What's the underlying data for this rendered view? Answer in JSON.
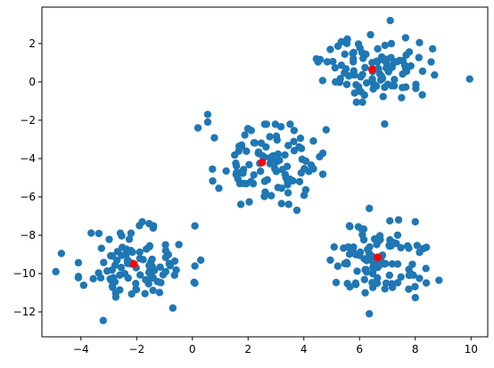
{
  "chart_data": {
    "type": "scatter",
    "title": "",
    "xlabel": "",
    "ylabel": "",
    "xlim": [
      -5.4,
      10.6
    ],
    "ylim": [
      -13.3,
      3.9
    ],
    "xticks": [
      -4,
      -2,
      0,
      2,
      4,
      6,
      8,
      10
    ],
    "yticks": [
      2,
      0,
      -2,
      -4,
      -6,
      -8,
      -10,
      -12
    ],
    "grid": false,
    "legend": "none",
    "colors": {
      "points": "#1f77b4",
      "centroids": "#ff0000",
      "axes": "#000000",
      "background": "#ffffff"
    },
    "series": [
      {
        "role": "points",
        "clusters": [
          {
            "center": [
              -2.0,
              -9.5
            ],
            "spread": [
              0.95,
              1.0
            ],
            "count": 100,
            "seed": 11,
            "extra": [
              [
                -4.9,
                -9.9
              ],
              [
                -4.7,
                -8.95
              ],
              [
                -3.2,
                -12.45
              ],
              [
                -0.7,
                -11.8
              ],
              [
                0.3,
                -9.3
              ],
              [
                -1.9,
                -7.5
              ],
              [
                -1.55,
                -7.4
              ]
            ]
          },
          {
            "center": [
              2.7,
              -4.3
            ],
            "spread": [
              0.9,
              0.95
            ],
            "count": 100,
            "seed": 23,
            "extra": [
              [
                0.2,
                -2.4
              ],
              [
                0.55,
                -1.7
              ],
              [
                0.55,
                -2.1
              ],
              [
                4.8,
                -2.5
              ],
              [
                3.75,
                -6.7
              ],
              [
                0.95,
                -5.55
              ],
              [
                3.2,
                -6.35
              ]
            ]
          },
          {
            "center": [
              6.6,
              0.7
            ],
            "spread": [
              0.95,
              0.8
            ],
            "count": 100,
            "seed": 37,
            "extra": [
              [
                9.95,
                0.15
              ],
              [
                7.1,
                3.2
              ],
              [
                6.9,
                -2.2
              ],
              [
                4.45,
                1.2
              ],
              [
                8.15,
                2.05
              ],
              [
                7.65,
                2.3
              ]
            ]
          },
          {
            "center": [
              6.6,
              -9.3
            ],
            "spread": [
              0.9,
              0.95
            ],
            "count": 100,
            "seed": 51,
            "extra": [
              [
                6.35,
                -12.1
              ],
              [
                8.85,
                -10.35
              ],
              [
                6.35,
                -6.6
              ],
              [
                7.4,
                -7.2
              ],
              [
                8.0,
                -7.3
              ],
              [
                4.95,
                -9.3
              ]
            ]
          }
        ]
      },
      {
        "role": "centroids",
        "points": [
          [
            -2.1,
            -9.5
          ],
          [
            2.5,
            -4.2
          ],
          [
            6.45,
            0.65
          ],
          [
            6.65,
            -9.15
          ]
        ]
      }
    ]
  }
}
